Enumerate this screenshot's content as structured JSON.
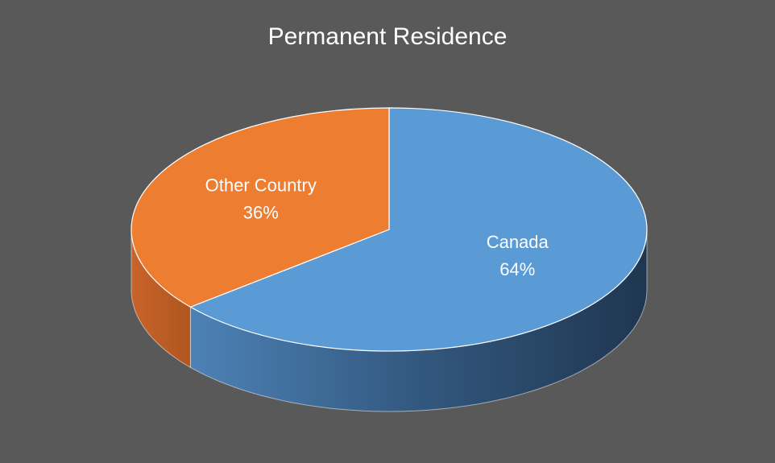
{
  "chart_data": {
    "type": "pie3d",
    "title": "Permanent Residence",
    "categories": [
      "Canada",
      "Other Country"
    ],
    "values": [
      64,
      36
    ],
    "value_labels": [
      "64%",
      "36%"
    ],
    "colors": [
      "#5b9bd5",
      "#ed7d31"
    ]
  }
}
